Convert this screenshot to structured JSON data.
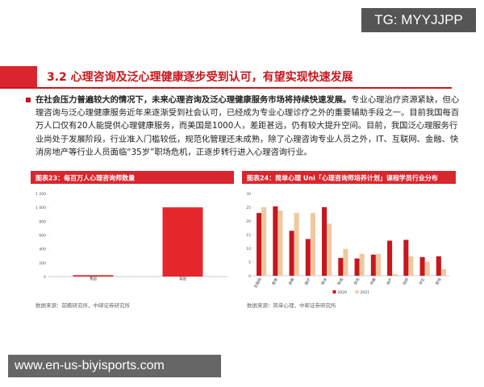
{
  "watermark_top": "TG: MYYJJPP",
  "watermark_bottom": "www.en-us-biyisports.com",
  "header": {
    "title": "3.2 心理咨询及泛心理健康逐步受到认可，有望实现快速发展"
  },
  "body": {
    "bold": "在社会压力普遍较大的情况下，未来心理咨询及泛心理健康服务市场将持续快速发展。",
    "text": "专业心理治疗资源紧缺，但心理咨询与泛心理健康服务近年来逐渐受到社会认可，已经成为专业心理诊疗之外的重要辅助手段之一。目前我国每百万人口仅有20人能提供心理健康服务，而美国是1000人，差距甚远，仍有较大提升空间。目前，我国泛心理服务行业尚处于发展阶段，行业准入门槛较低，规范化管理还未成熟，除了心理咨询专业人员之外，IT、互联网、金融、快消房地产等行业人员面临“35岁”职场危机，正逐步转行进入心理咨询行业。"
  },
  "figures": [
    {
      "type": "bar",
      "title": "图表23：每百万人心理咨询师数量",
      "source": "数据来源：前瞻研究所，中邮证券研究所",
      "categories": [
        "我国",
        "美国"
      ],
      "series": [
        {
          "name": null,
          "color": "#e5262b",
          "values": [
            20,
            1000
          ]
        }
      ],
      "ylim": [
        0,
        1200
      ],
      "yticks": [
        0,
        200,
        400,
        600,
        800,
        {
          "value": 1000,
          "label": "1 000"
        },
        {
          "value": 1200,
          "label": "1 200"
        }
      ]
    },
    {
      "type": "bar",
      "title": "图表24：简单心理 Uni「心理咨询师培养计划」课程学员行业分布",
      "source": "数据来源：简单心理，中邮证券研究所",
      "categories": [
        "互联网",
        "教育",
        "金融",
        "医疗",
        "快消",
        "制造",
        "咨询",
        "传媒",
        "地产",
        "政府",
        "学生",
        "其他"
      ],
      "series": [
        {
          "name": "2020",
          "color": "#c8161d",
          "values": [
            22.9,
            25.3,
            16.4,
            13.4,
            25.0,
            6.5,
            6.3,
            7.7,
            12.8,
            13.1,
            6.8,
            7.1
          ]
        },
        {
          "name": "2021",
          "color": "#f0c8a0",
          "values": [
            25.0,
            23.8,
            22.9,
            22.9,
            19.0,
            9.8,
            8.0,
            8.0,
            0.6,
            7.1,
            5.1,
            2.4
          ]
        }
      ],
      "ylim": [
        0,
        30
      ],
      "yticks": [
        0,
        5,
        10,
        15,
        20,
        25,
        30
      ]
    }
  ]
}
